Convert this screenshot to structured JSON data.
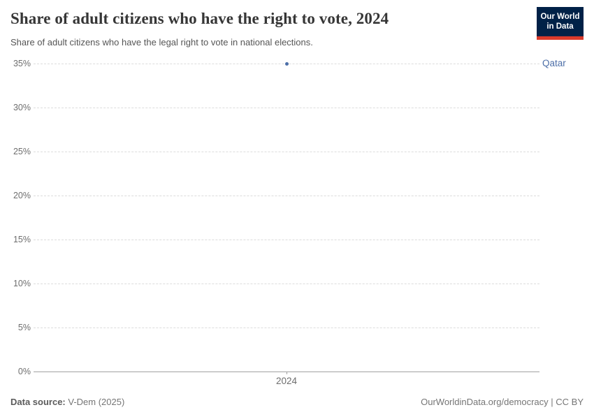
{
  "header": {
    "title": "Share of adult citizens who have the right to vote, 2024",
    "subtitle": "Share of adult citizens who have the legal right to vote in national elections.",
    "logo": {
      "line1": "Our World",
      "line2": "in Data",
      "bg_color": "#002147",
      "accent_color": "#d93a2b"
    }
  },
  "chart_data": {
    "type": "scatter",
    "title": "Share of adult citizens who have the right to vote, 2024",
    "x": [
      2024
    ],
    "series": [
      {
        "name": "Qatar",
        "values": [
          35
        ],
        "color": "#4d6fa8"
      }
    ],
    "ylim": [
      0,
      35
    ],
    "yticks": [
      0,
      5,
      10,
      15,
      20,
      25,
      30,
      35
    ],
    "ytick_suffix": "%",
    "xticks": [
      2024
    ],
    "grid": true,
    "gridline_color": "#dcdcdc",
    "axis_color": "#a1a1a1",
    "legend_position": "right-of-gridline"
  },
  "footer": {
    "datasource_label": "Data source:",
    "datasource_value": " V-Dem (2025)",
    "license_text": "OurWorldinData.org/democracy | CC BY"
  }
}
